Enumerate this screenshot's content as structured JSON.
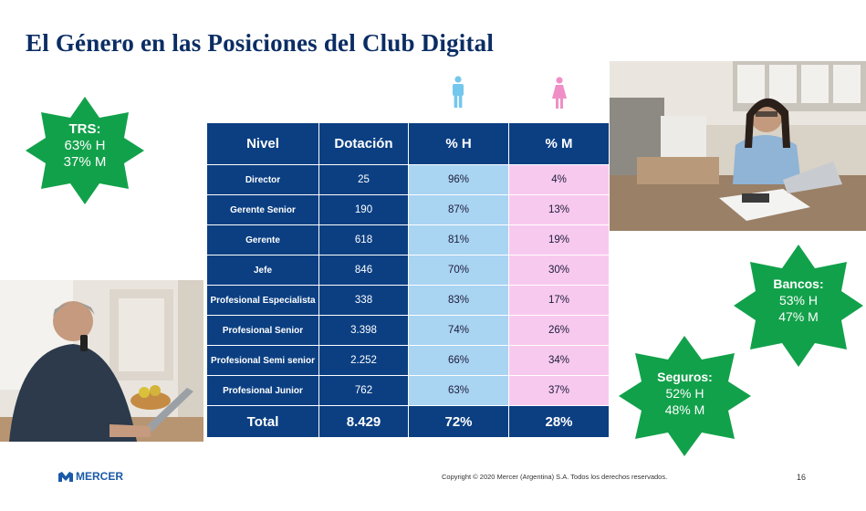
{
  "slide": {
    "title": "El Género en las Posiciones del Club Digital",
    "footer": "Copyright © 2020 Mercer (Argentina) S.A. Todos los derechos reservados.",
    "page_number": "16",
    "logo_text": "MERCER",
    "icons": [
      "male-figure-icon",
      "female-figure-icon",
      "mercer-logo-icon"
    ]
  },
  "stars": {
    "trs": {
      "title": "TRS:",
      "h": "63% H",
      "m": "37% M"
    },
    "bancos": {
      "title": "Bancos:",
      "h": "53% H",
      "m": "47% M"
    },
    "seguros": {
      "title": "Seguros:",
      "h": "52% H",
      "m": "48% M"
    }
  },
  "colors": {
    "title": "#0b2d64",
    "table_header": "#0b3f82",
    "male_cell": "#a9d4f2",
    "female_cell": "#f8c9ef",
    "star_green": "#12a14b",
    "male_icon": "#74c7ec",
    "female_icon": "#ef8fc6"
  },
  "table": {
    "headers": [
      "Nivel",
      "Dotación",
      "% H",
      "% M"
    ],
    "rows": [
      {
        "nivel": "Director",
        "dotacion": "25",
        "h": "96%",
        "m": "4%"
      },
      {
        "nivel": "Gerente Senior",
        "dotacion": "190",
        "h": "87%",
        "m": "13%"
      },
      {
        "nivel": "Gerente",
        "dotacion": "618",
        "h": "81%",
        "m": "19%"
      },
      {
        "nivel": "Jefe",
        "dotacion": "846",
        "h": "70%",
        "m": "30%"
      },
      {
        "nivel": "Profesional Especialista",
        "dotacion": "338",
        "h": "83%",
        "m": "17%"
      },
      {
        "nivel": "Profesional  Senior",
        "dotacion": "3.398",
        "h": "74%",
        "m": "26%"
      },
      {
        "nivel": "Profesional  Semi senior",
        "dotacion": "2.252",
        "h": "66%",
        "m": "34%"
      },
      {
        "nivel": "Profesional  Junior",
        "dotacion": "762",
        "h": "63%",
        "m": "37%"
      }
    ],
    "total": {
      "nivel": "Total",
      "dotacion": "8.429",
      "h": "72%",
      "m": "28%"
    }
  }
}
